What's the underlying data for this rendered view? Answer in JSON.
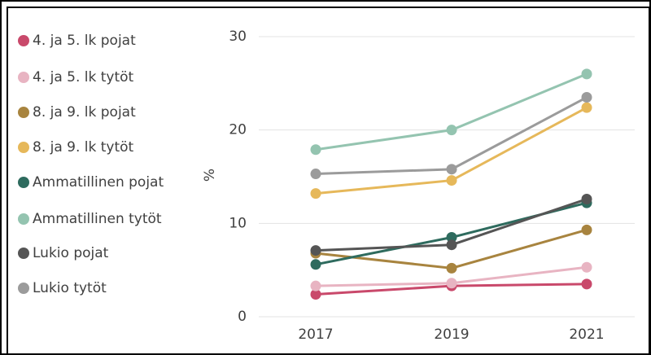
{
  "chart_data": {
    "type": "line",
    "categories": [
      "2017",
      "2019",
      "2021"
    ],
    "ylabel": "%",
    "ylim": [
      0,
      30
    ],
    "yticks": [
      0,
      10,
      20,
      30
    ],
    "grid": true,
    "legend": "left",
    "series": [
      {
        "name": "4. ja 5. lk pojat",
        "color": "#c9496b",
        "values": [
          2.4,
          3.3,
          3.5
        ]
      },
      {
        "name": "4. ja 5. lk tytöt",
        "color": "#e8b4c2",
        "values": [
          3.3,
          3.6,
          5.3
        ]
      },
      {
        "name": "8. ja 9. lk pojat",
        "color": "#a8843f",
        "values": [
          6.8,
          5.2,
          9.3
        ]
      },
      {
        "name": "8. ja 9. lk tytöt",
        "color": "#e6b85a",
        "values": [
          13.2,
          14.6,
          22.4
        ]
      },
      {
        "name": "Ammatillinen pojat",
        "color": "#2e6b5e",
        "values": [
          5.6,
          8.5,
          12.2
        ]
      },
      {
        "name": "Ammatillinen tytöt",
        "color": "#94c4b0",
        "values": [
          17.9,
          20.0,
          26.0
        ]
      },
      {
        "name": "Lukio pojat",
        "color": "#555555",
        "values": [
          7.1,
          7.7,
          12.6
        ]
      },
      {
        "name": "Lukio tytöt",
        "color": "#9b9b9b",
        "values": [
          15.3,
          15.8,
          23.5
        ]
      }
    ]
  }
}
